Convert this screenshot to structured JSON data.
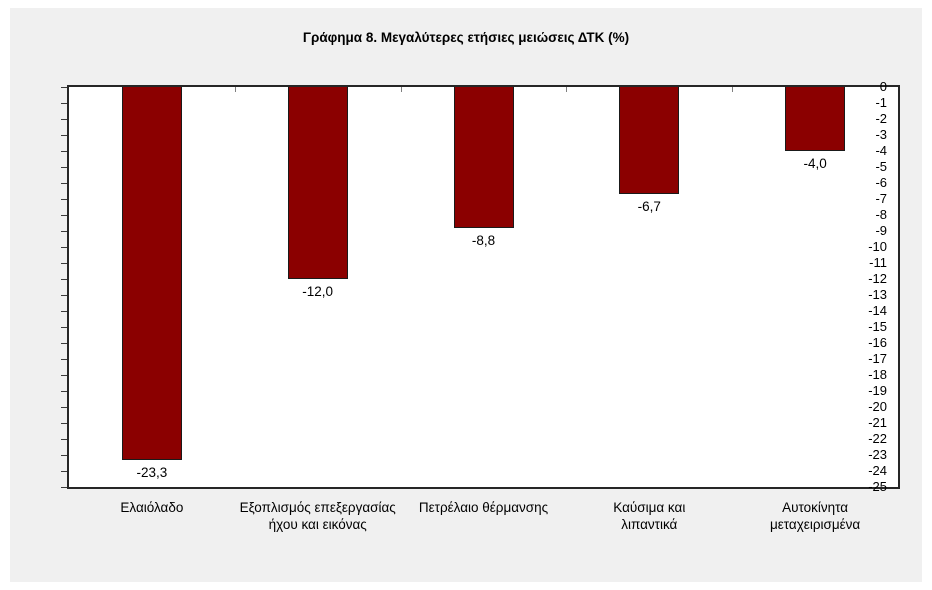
{
  "title": "Γράφημα 8. Μεγαλύτερες ετήσιες μειώσεις ΔΤΚ (%)",
  "chart_data": {
    "type": "bar",
    "title": "Γράφημα 8. Μεγαλύτερες ετήσιες μειώσεις ΔΤΚ (%)",
    "categories": [
      "Ελαιόλαδο",
      "Εξοπλισμός επεξεργασίας\nήχου και εικόνας",
      "Πετρέλαιο θέρμανσης",
      "Καύσιμα και\nλιπαντικά",
      "Αυτοκίνητα\nμεταχειρισμένα"
    ],
    "values": [
      -23.3,
      -12.0,
      -8.8,
      -6.7,
      -4.0
    ],
    "value_labels": [
      "-23,3",
      "-12,0",
      "-8,8",
      "-6,7",
      "-4,0"
    ],
    "xlabel": "",
    "ylabel": "",
    "ylim": [
      -25,
      0
    ],
    "y_tick_step": 1,
    "y_tick_labels": [
      "0",
      "-1",
      "-2",
      "-3",
      "-4",
      "-5",
      "-6",
      "-7",
      "-8",
      "-9",
      "-10",
      "-11",
      "-12",
      "-13",
      "-14",
      "-15",
      "-16",
      "-17",
      "-18",
      "-19",
      "-20",
      "-21",
      "-22",
      "-23",
      "-24",
      "-25"
    ],
    "grid": false,
    "legend": false,
    "bar_color": "#8b0000",
    "bar_border_color": "#1a1a1a",
    "plot_background": "#ffffff",
    "chart_background": "#f0f0f0"
  }
}
